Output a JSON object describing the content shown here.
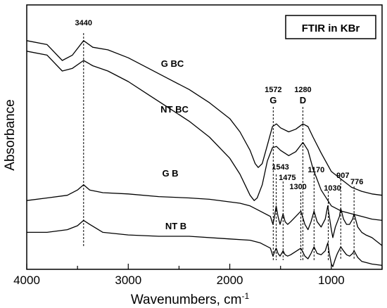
{
  "chart_data": {
    "type": "line",
    "title": "",
    "xlabel": "Wavenumbers, cm",
    "xlabel_sup": "-1",
    "ylabel": "Absorbance",
    "xlim": [
      4000,
      500
    ],
    "ylim": [
      0,
      100
    ],
    "x_ticks": [
      4000,
      3000,
      2000,
      1000
    ],
    "x_tick_labels": [
      "4000",
      "3000",
      "2000",
      "1000"
    ],
    "y_ticks": [],
    "grid": false,
    "box_label": "FTIR in KBr",
    "series": [
      {
        "name": "G BC",
        "points": [
          [
            4000,
            86.5
          ],
          [
            3800,
            85
          ],
          [
            3650,
            79
          ],
          [
            3550,
            81
          ],
          [
            3440,
            86.5
          ],
          [
            3350,
            84
          ],
          [
            3200,
            83
          ],
          [
            3000,
            80
          ],
          [
            2800,
            76
          ],
          [
            2600,
            72
          ],
          [
            2400,
            68
          ],
          [
            2200,
            63
          ],
          [
            2000,
            57
          ],
          [
            1900,
            52
          ],
          [
            1800,
            45
          ],
          [
            1750,
            40
          ],
          [
            1720,
            38.5
          ],
          [
            1680,
            40
          ],
          [
            1630,
            47
          ],
          [
            1580,
            54
          ],
          [
            1540,
            55
          ],
          [
            1500,
            53.5
          ],
          [
            1420,
            52
          ],
          [
            1350,
            53
          ],
          [
            1280,
            55
          ],
          [
            1230,
            54
          ],
          [
            1180,
            50
          ],
          [
            1100,
            44
          ],
          [
            1000,
            37
          ],
          [
            900,
            34
          ],
          [
            800,
            31
          ],
          [
            700,
            29.5
          ],
          [
            600,
            28.5
          ],
          [
            500,
            28
          ]
        ]
      },
      {
        "name": "NT BC",
        "points": [
          [
            4000,
            82.5
          ],
          [
            3800,
            81
          ],
          [
            3650,
            75
          ],
          [
            3550,
            76
          ],
          [
            3440,
            79
          ],
          [
            3350,
            77
          ],
          [
            3200,
            75
          ],
          [
            3000,
            71
          ],
          [
            2800,
            66
          ],
          [
            2600,
            61
          ],
          [
            2400,
            56
          ],
          [
            2200,
            50
          ],
          [
            2000,
            42
          ],
          [
            1900,
            36
          ],
          [
            1850,
            32
          ],
          [
            1800,
            28
          ],
          [
            1760,
            26
          ],
          [
            1730,
            27
          ],
          [
            1680,
            32
          ],
          [
            1630,
            41
          ],
          [
            1580,
            46
          ],
          [
            1540,
            46.5
          ],
          [
            1500,
            45
          ],
          [
            1420,
            43
          ],
          [
            1350,
            44.5
          ],
          [
            1280,
            48
          ],
          [
            1230,
            45
          ],
          [
            1180,
            38
          ],
          [
            1100,
            30
          ],
          [
            1000,
            24
          ],
          [
            900,
            22
          ],
          [
            800,
            21
          ],
          [
            700,
            20
          ],
          [
            600,
            19
          ],
          [
            500,
            18.5
          ]
        ]
      },
      {
        "name": "G B",
        "points": [
          [
            4000,
            26
          ],
          [
            3800,
            27
          ],
          [
            3600,
            28
          ],
          [
            3500,
            30
          ],
          [
            3440,
            32
          ],
          [
            3380,
            30
          ],
          [
            3250,
            29
          ],
          [
            3000,
            28.5
          ],
          [
            2700,
            27.5
          ],
          [
            2400,
            27
          ],
          [
            2200,
            26.5
          ],
          [
            2000,
            25.5
          ],
          [
            1900,
            25
          ],
          [
            1800,
            24
          ],
          [
            1700,
            22
          ],
          [
            1600,
            20
          ],
          [
            1575,
            17
          ],
          [
            1560,
            20
          ],
          [
            1543,
            24
          ],
          [
            1525,
            20
          ],
          [
            1505,
            17
          ],
          [
            1490,
            19
          ],
          [
            1475,
            21
          ],
          [
            1455,
            18
          ],
          [
            1430,
            17
          ],
          [
            1400,
            18
          ],
          [
            1300,
            22
          ],
          [
            1260,
            17
          ],
          [
            1230,
            15
          ],
          [
            1200,
            18
          ],
          [
            1170,
            22
          ],
          [
            1140,
            18
          ],
          [
            1100,
            16
          ],
          [
            1060,
            19
          ],
          [
            1035,
            24
          ],
          [
            1020,
            20
          ],
          [
            1000,
            15
          ],
          [
            985,
            12
          ],
          [
            960,
            16
          ],
          [
            940,
            18
          ],
          [
            920,
            20
          ],
          [
            907,
            23
          ],
          [
            880,
            19
          ],
          [
            850,
            17
          ],
          [
            820,
            17
          ],
          [
            790,
            19
          ],
          [
            776,
            21
          ],
          [
            740,
            16
          ],
          [
            700,
            14
          ],
          [
            660,
            13
          ],
          [
            600,
            12
          ],
          [
            500,
            9
          ]
        ]
      },
      {
        "name": "NT B",
        "points": [
          [
            4000,
            14
          ],
          [
            3800,
            14
          ],
          [
            3600,
            15
          ],
          [
            3500,
            16.5
          ],
          [
            3440,
            18.5
          ],
          [
            3380,
            17
          ],
          [
            3250,
            14
          ],
          [
            3000,
            13
          ],
          [
            2700,
            12.5
          ],
          [
            2400,
            12.5
          ],
          [
            2000,
            11.5
          ],
          [
            1800,
            11
          ],
          [
            1700,
            10
          ],
          [
            1600,
            8
          ],
          [
            1575,
            5
          ],
          [
            1560,
            6.5
          ],
          [
            1543,
            8
          ],
          [
            1525,
            6
          ],
          [
            1505,
            5
          ],
          [
            1490,
            6
          ],
          [
            1475,
            7
          ],
          [
            1455,
            5.5
          ],
          [
            1430,
            5
          ],
          [
            1400,
            5.5
          ],
          [
            1300,
            8
          ],
          [
            1260,
            5
          ],
          [
            1230,
            4
          ],
          [
            1200,
            6
          ],
          [
            1170,
            8.5
          ],
          [
            1140,
            6
          ],
          [
            1100,
            5.5
          ],
          [
            1060,
            7
          ],
          [
            1035,
            10
          ],
          [
            1020,
            6
          ],
          [
            1000,
            2
          ],
          [
            985,
            1
          ],
          [
            960,
            4
          ],
          [
            940,
            6
          ],
          [
            920,
            7.5
          ],
          [
            907,
            8.5
          ],
          [
            880,
            7
          ],
          [
            850,
            5.5
          ],
          [
            820,
            5
          ],
          [
            790,
            6
          ],
          [
            776,
            7
          ],
          [
            740,
            4.5
          ],
          [
            700,
            3
          ],
          [
            650,
            2.5
          ],
          [
            600,
            2
          ],
          [
            500,
            1.5
          ]
        ]
      }
    ],
    "annotations": {
      "peak_lines": [
        {
          "x": 3440,
          "label": "3440"
        },
        {
          "x": 1572,
          "label": "1572",
          "sub": "G"
        },
        {
          "x": 1280,
          "label": "1280",
          "sub": "D"
        },
        {
          "x": 1543,
          "label": "1543"
        },
        {
          "x": 1475,
          "label": "1475"
        },
        {
          "x": 1300,
          "label": "1300"
        },
        {
          "x": 1170,
          "label": "1170"
        },
        {
          "x": 1030,
          "label": "1030"
        },
        {
          "x": 907,
          "label": "907"
        },
        {
          "x": 776,
          "label": "776"
        }
      ]
    }
  }
}
